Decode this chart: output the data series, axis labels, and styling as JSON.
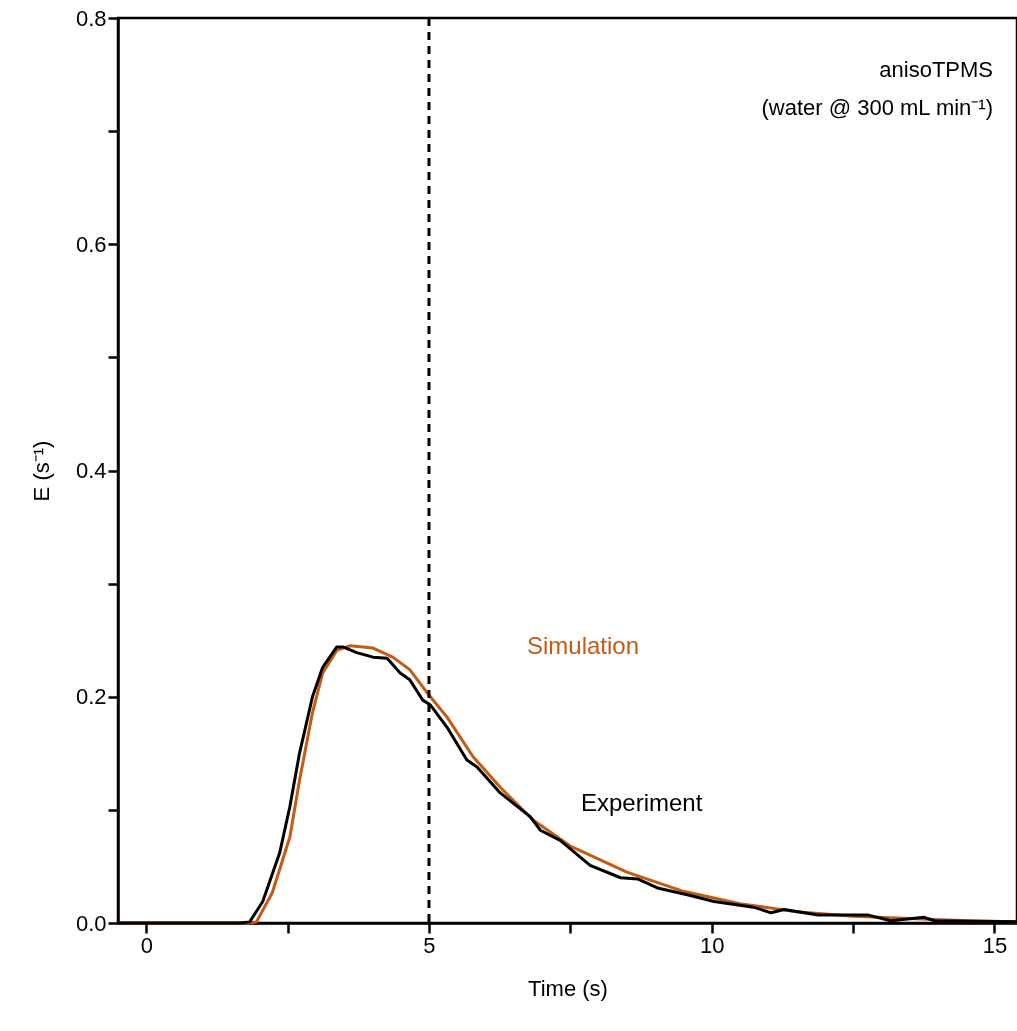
{
  "chart_data": {
    "type": "line",
    "xlabel": "Time (s)",
    "ylabel": "E (s⁻¹)",
    "xlim": [
      -0.5,
      15.4
    ],
    "ylim": [
      0,
      0.8
    ],
    "xticks": [
      0,
      {
        "value": 2.5,
        "label": null
      },
      5,
      {
        "value": 7.5,
        "label": null
      },
      10,
      {
        "value": 12.5,
        "label": null
      },
      15
    ],
    "yticks": [
      {
        "value": 0,
        "label": "0.0"
      },
      {
        "value": 0.1,
        "label": null
      },
      0.2,
      {
        "value": 0.3,
        "label": null
      },
      0.4,
      {
        "value": 0.5,
        "label": null
      },
      0.6,
      {
        "value": 0.7,
        "label": null
      },
      0.8
    ],
    "grid": false,
    "legend": false,
    "marker": "none",
    "line_style": "solid",
    "series": [
      {
        "name": "Simulation",
        "color": "#c55a11",
        "x": [
          -0.5,
          1.8,
          1.95,
          2.23,
          2.54,
          2.71,
          2.94,
          3.12,
          3.37,
          3.6,
          4.01,
          4.36,
          4.66,
          4.96,
          5.32,
          5.78,
          6.26,
          6.84,
          7.5,
          8.5,
          9.5,
          10.5,
          11.5,
          12.5,
          13.5,
          14.5,
          15.4
        ],
        "values": [
          0,
          0,
          0.001,
          0.027,
          0.076,
          0.126,
          0.186,
          0.221,
          0.241,
          0.245,
          0.243,
          0.235,
          0.224,
          0.204,
          0.182,
          0.147,
          0.12,
          0.091,
          0.068,
          0.045,
          0.028,
          0.017,
          0.01,
          0.006,
          0.004,
          0.002,
          0.001
        ]
      },
      {
        "name": "Experiment",
        "color": "#000000",
        "x": [
          -0.5,
          1.65,
          1.83,
          2.06,
          2.36,
          2.54,
          2.71,
          2.94,
          3.12,
          3.37,
          3.48,
          3.72,
          4.01,
          4.26,
          4.49,
          4.66,
          4.89,
          5.02,
          5.32,
          5.67,
          5.85,
          6.26,
          6.79,
          6.97,
          7.32,
          7.85,
          8.39,
          8.69,
          9.04,
          9.57,
          10.04,
          10.74,
          11.05,
          11.28,
          11.88,
          12.77,
          13.17,
          13.76,
          13.94,
          15.4
        ],
        "values": [
          0,
          0,
          0.001,
          0.019,
          0.062,
          0.103,
          0.15,
          0.2,
          0.226,
          0.244,
          0.244,
          0.239,
          0.235,
          0.234,
          0.221,
          0.215,
          0.197,
          0.193,
          0.173,
          0.144,
          0.138,
          0.115,
          0.094,
          0.082,
          0.073,
          0.051,
          0.04,
          0.039,
          0.031,
          0.025,
          0.019,
          0.014,
          0.009,
          0.012,
          0.007,
          0.007,
          0.002,
          0.005,
          0.002,
          0.001
        ]
      }
    ],
    "ref_lines": [
      {
        "axis": "x",
        "value": 5,
        "color": "#000000",
        "line_style": "dashed"
      }
    ],
    "annotations": [
      "anisoTPMS",
      "(water @ 300 mL min⁻¹)"
    ]
  }
}
